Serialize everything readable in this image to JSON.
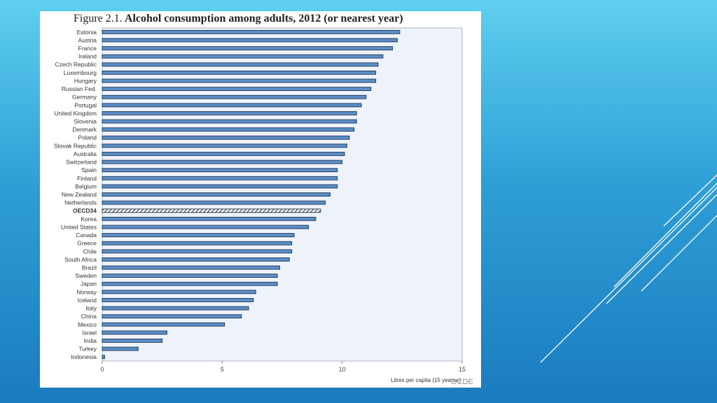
{
  "figure": {
    "number": "Figure 2.1.",
    "title": "Alcohol consumption among adults, 2012 (or nearest year)",
    "footer": "OCDE"
  },
  "colors": {
    "bar": "#5b8fc7",
    "bar_edge": "#1f3550",
    "plot_bg": "#eef3fa",
    "highlight_pattern": "#3a3a3a"
  },
  "chart_data": {
    "type": "bar",
    "orientation": "horizontal",
    "title": "Alcohol consumption among adults, 2012 (or nearest year)",
    "xlabel": "Litres per capita (15 years+)",
    "ylabel": "",
    "xlim": [
      0,
      15
    ],
    "xticks": [
      0,
      5,
      10,
      15
    ],
    "grid": false,
    "highlight": "OECD34",
    "categories": [
      "Estonia",
      "Austria",
      "France",
      "Ireland",
      "Czech Republic",
      "Luxembourg",
      "Hungary",
      "Russian Fed.",
      "Germany",
      "Portugal",
      "United Kingdom",
      "Slovenia",
      "Denmark",
      "Poland",
      "Slovak Republic",
      "Australia",
      "Switzerland",
      "Spain",
      "Finland",
      "Belgium",
      "New Zealand",
      "Netherlands",
      "OECD34",
      "Korea",
      "United States",
      "Canada",
      "Greece",
      "Chile",
      "South Africa",
      "Brazil",
      "Sweden",
      "Japan",
      "Norway",
      "Iceland",
      "Italy",
      "China",
      "Mexico",
      "Israel",
      "India",
      "Turkey",
      "Indonesia"
    ],
    "values": [
      12.4,
      12.3,
      12.1,
      11.7,
      11.5,
      11.4,
      11.4,
      11.2,
      11.0,
      10.8,
      10.6,
      10.6,
      10.5,
      10.3,
      10.2,
      10.1,
      10.0,
      9.8,
      9.8,
      9.8,
      9.5,
      9.3,
      9.1,
      8.9,
      8.6,
      8.0,
      7.9,
      7.9,
      7.8,
      7.4,
      7.3,
      7.3,
      6.4,
      6.3,
      6.1,
      5.8,
      5.1,
      2.7,
      2.5,
      1.5,
      0.1
    ]
  }
}
